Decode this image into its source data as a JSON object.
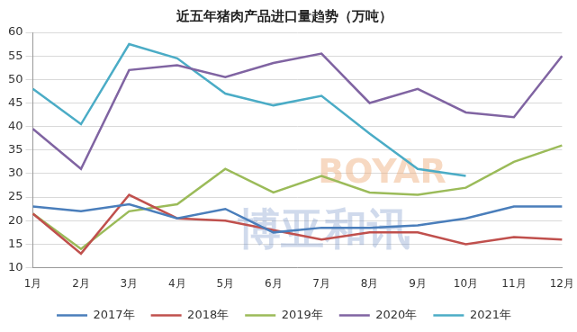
{
  "chart_data": {
    "type": "line",
    "title": "近五年猪肉产品进口量趋势（万吨）",
    "categories": [
      "1月",
      "2月",
      "3月",
      "4月",
      "5月",
      "6月",
      "7月",
      "8月",
      "9月",
      "10月",
      "11月",
      "12月"
    ],
    "series": [
      {
        "name": "2017年",
        "color": "#4a7ebb",
        "values": [
          23,
          22,
          23.5,
          20.5,
          22.5,
          17.5,
          18.5,
          18.5,
          19,
          20.5,
          23,
          23
        ]
      },
      {
        "name": "2018年",
        "color": "#c0504d",
        "values": [
          21.5,
          13,
          25.5,
          20.5,
          20,
          18,
          16,
          17.5,
          17.5,
          15,
          16.5,
          16
        ]
      },
      {
        "name": "2019年",
        "color": "#9bbb59",
        "values": [
          21.5,
          14,
          22,
          23.5,
          31,
          26,
          29.5,
          26,
          25.5,
          27,
          32.5,
          36
        ]
      },
      {
        "name": "2020年",
        "color": "#8064a2",
        "values": [
          39.5,
          31,
          52,
          53,
          50.5,
          53.5,
          55.5,
          45,
          48,
          43,
          42,
          55
        ]
      },
      {
        "name": "2021年",
        "color": "#4bacc6",
        "values": [
          48,
          40.5,
          57.5,
          54.5,
          47,
          44.5,
          46.5,
          38.5,
          31,
          29.5,
          null,
          null
        ]
      }
    ],
    "ylim": [
      10,
      60
    ],
    "yticks": [
      10,
      15,
      20,
      25,
      30,
      35,
      40,
      45,
      50,
      55,
      60
    ],
    "grid": true,
    "legend": "bottom",
    "annotations": [
      "BOYAR",
      "博亚和讯"
    ]
  }
}
